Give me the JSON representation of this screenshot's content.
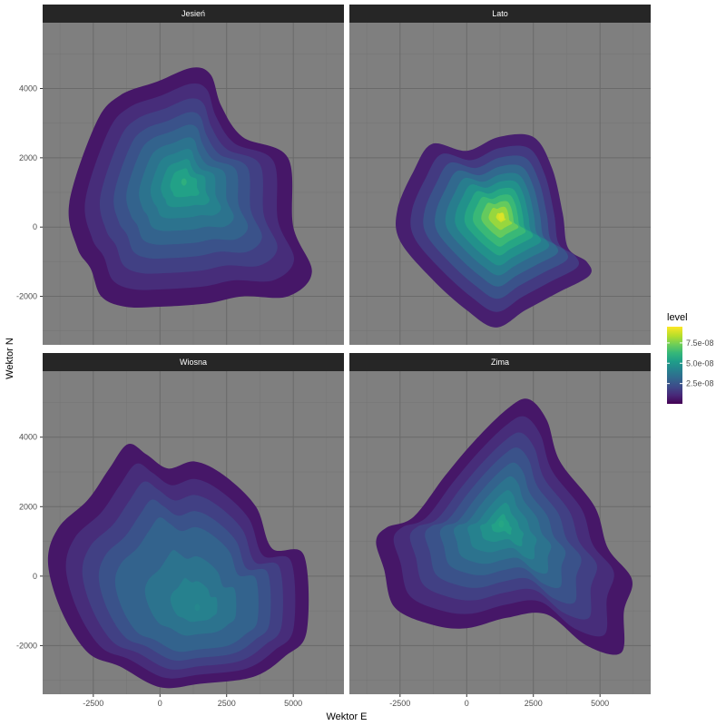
{
  "chart_data": {
    "type": "heatmap",
    "subtype": "faceted 2D density contour (filled)",
    "xlabel": "Wektor E",
    "ylabel": "Wektor N",
    "xlim": [
      -4400,
      6900
    ],
    "ylim": [
      -3400,
      5900
    ],
    "xticks": [
      -2500,
      0,
      2500,
      5000
    ],
    "yticks": [
      -2000,
      0,
      2000,
      4000
    ],
    "grid": true,
    "legend": {
      "title": "level",
      "position": "right",
      "colormap": "viridis",
      "range": [
        0,
        9.5e-08
      ],
      "ticks": [
        {
          "value": 2.5e-08,
          "label": "2.5e-08"
        },
        {
          "value": 5e-08,
          "label": "5.0e-08"
        },
        {
          "value": 7.5e-08,
          "label": "7.5e-08"
        }
      ]
    },
    "panels": [
      {
        "name": "Jesień",
        "peak_level": 6e-08,
        "peak": [
          900,
          1300
        ],
        "outline": [
          [
            -100,
            4200
          ],
          [
            1200,
            4600
          ],
          [
            1900,
            4400
          ],
          [
            2300,
            3500
          ],
          [
            3100,
            2600
          ],
          [
            4800,
            2000
          ],
          [
            5000,
            0
          ],
          [
            5700,
            -1300
          ],
          [
            4800,
            -2000
          ],
          [
            3100,
            -2000
          ],
          [
            1800,
            -2200
          ],
          [
            0,
            -2300
          ],
          [
            -1300,
            -2300
          ],
          [
            -2200,
            -2000
          ],
          [
            -2600,
            -1200
          ],
          [
            -3100,
            -600
          ],
          [
            -3400,
            700
          ],
          [
            -2400,
            3000
          ],
          [
            -1500,
            3800
          ]
        ],
        "levels": [
          {
            "level": 6e-09,
            "scale": 1.0
          },
          {
            "level": 1.2e-08,
            "scale": 0.86
          },
          {
            "level": 1.8e-08,
            "scale": 0.73
          },
          {
            "level": 2.4e-08,
            "scale": 0.61
          },
          {
            "level": 3e-08,
            "scale": 0.5
          },
          {
            "level": 3.6e-08,
            "scale": 0.39
          },
          {
            "level": 4.2e-08,
            "scale": 0.29
          },
          {
            "level": 4.8e-08,
            "scale": 0.2
          },
          {
            "level": 5.4e-08,
            "scale": 0.12
          }
        ]
      },
      {
        "name": "Lato",
        "peak_level": 9e-08,
        "peak": [
          1300,
          300
        ],
        "outline": [
          [
            -1300,
            2400
          ],
          [
            0,
            2200
          ],
          [
            1200,
            2600
          ],
          [
            2500,
            2600
          ],
          [
            3200,
            1700
          ],
          [
            3600,
            400
          ],
          [
            3800,
            -600
          ],
          [
            4500,
            -1000
          ],
          [
            4600,
            -1400
          ],
          [
            3400,
            -1900
          ],
          [
            2200,
            -2400
          ],
          [
            1100,
            -2900
          ],
          [
            0,
            -2400
          ],
          [
            -1300,
            -1500
          ],
          [
            -2500,
            -400
          ],
          [
            -2600,
            500
          ],
          [
            -2000,
            1600
          ]
        ],
        "levels": [
          {
            "level": 8e-09,
            "scale": 1.0
          },
          {
            "level": 1.6e-08,
            "scale": 0.86
          },
          {
            "level": 2.4e-08,
            "scale": 0.74
          },
          {
            "level": 3.2e-08,
            "scale": 0.63
          },
          {
            "level": 4e-08,
            "scale": 0.53
          },
          {
            "level": 4.8e-08,
            "scale": 0.44
          },
          {
            "level": 5.6e-08,
            "scale": 0.35
          },
          {
            "level": 6.4e-08,
            "scale": 0.27
          },
          {
            "level": 7.2e-08,
            "scale": 0.19
          },
          {
            "level": 8e-08,
            "scale": 0.12
          },
          {
            "level": 8.8e-08,
            "scale": 0.05
          }
        ]
      },
      {
        "name": "Wiosna",
        "peak_level": 4.4e-08,
        "peak": [
          1400,
          -900
        ],
        "outline": [
          [
            -1200,
            3800
          ],
          [
            -500,
            3500
          ],
          [
            300,
            3100
          ],
          [
            1300,
            3300
          ],
          [
            2400,
            2900
          ],
          [
            3600,
            2000
          ],
          [
            4200,
            800
          ],
          [
            5400,
            600
          ],
          [
            5500,
            -1600
          ],
          [
            4700,
            -2300
          ],
          [
            3500,
            -2900
          ],
          [
            1500,
            -3100
          ],
          [
            0,
            -3200
          ],
          [
            -1500,
            -2600
          ],
          [
            -2700,
            -2200
          ],
          [
            -3700,
            -1000
          ],
          [
            -4200,
            400
          ],
          [
            -3800,
            1400
          ],
          [
            -2700,
            2200
          ],
          [
            -1900,
            3100
          ]
        ],
        "levels": [
          {
            "level": 6e-09,
            "scale": 1.0
          },
          {
            "level": 1.2e-08,
            "scale": 0.88
          },
          {
            "level": 1.8e-08,
            "scale": 0.77
          },
          {
            "level": 2.4e-08,
            "scale": 0.66
          },
          {
            "level": 3e-08,
            "scale": 0.55
          },
          {
            "level": 3.6e-08,
            "scale": 0.35
          },
          {
            "level": 4.2e-08,
            "scale": 0.18
          }
        ]
      },
      {
        "name": "Zima",
        "peak_level": 5.6e-08,
        "peak": [
          1300,
          1500
        ],
        "outline": [
          [
            1500,
            4800
          ],
          [
            2300,
            5100
          ],
          [
            3000,
            4500
          ],
          [
            3500,
            3300
          ],
          [
            4800,
            2000
          ],
          [
            5300,
            800
          ],
          [
            6200,
            -100
          ],
          [
            5900,
            -1000
          ],
          [
            5800,
            -2200
          ],
          [
            4500,
            -2000
          ],
          [
            3000,
            -1100
          ],
          [
            1500,
            -1200
          ],
          [
            0,
            -1500
          ],
          [
            -1300,
            -1400
          ],
          [
            -2700,
            -900
          ],
          [
            -3100,
            200
          ],
          [
            -3400,
            1000
          ],
          [
            -3000,
            1400
          ],
          [
            -2000,
            1700
          ],
          [
            -800,
            2900
          ],
          [
            300,
            3900
          ]
        ],
        "levels": [
          {
            "level": 6e-09,
            "scale": 1.0
          },
          {
            "level": 1.2e-08,
            "scale": 0.86
          },
          {
            "level": 1.8e-08,
            "scale": 0.73
          },
          {
            "level": 2.4e-08,
            "scale": 0.61
          },
          {
            "level": 3e-08,
            "scale": 0.49
          },
          {
            "level": 3.6e-08,
            "scale": 0.38
          },
          {
            "level": 4.2e-08,
            "scale": 0.27
          },
          {
            "level": 4.8e-08,
            "scale": 0.17
          },
          {
            "level": 5.4e-08,
            "scale": 0.08
          }
        ]
      }
    ]
  },
  "colors": {
    "panel_background": "#7f7f7f",
    "grid_major": "#6a6a6a",
    "grid_minor": "#757575",
    "strip_background": "#262626",
    "viridis": [
      "#440154",
      "#482878",
      "#3e4a89",
      "#31688e",
      "#26828e",
      "#1f9e89",
      "#35b779",
      "#6ece58",
      "#b5de2b",
      "#fde725"
    ]
  }
}
